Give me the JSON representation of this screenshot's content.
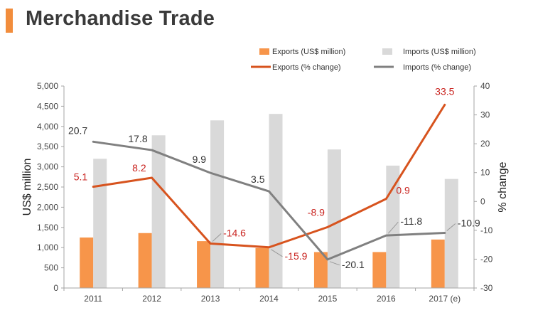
{
  "header": {
    "title": "Merchandise Trade",
    "accent_color": "#f28d3c"
  },
  "chart_data": {
    "type": "bar",
    "categories": [
      "2011",
      "2012",
      "2013",
      "2014",
      "2015",
      "2016",
      "2017 (e)"
    ],
    "series": [
      {
        "name": "Exports (US$ million)",
        "kind": "bar",
        "axis": "left",
        "color": "#f7954a",
        "values": [
          1250,
          1360,
          1160,
          990,
          890,
          890,
          1200
        ]
      },
      {
        "name": "Imports (US$ million)",
        "kind": "bar",
        "axis": "left",
        "color": "#d9d9d9",
        "values": [
          3200,
          3780,
          4150,
          4310,
          3430,
          3030,
          2700
        ]
      },
      {
        "name": "Exports (% change)",
        "kind": "line",
        "axis": "right",
        "color": "#d7531e",
        "label_color": "#c9231f",
        "values": [
          5.1,
          8.2,
          -14.6,
          -15.9,
          -8.9,
          0.9,
          33.5
        ],
        "labels": [
          "5.1",
          "8.2",
          "-14.6",
          "-15.9",
          "-8.9",
          "0.9",
          "33.5"
        ]
      },
      {
        "name": "Imports (% change)",
        "kind": "line",
        "axis": "right",
        "color": "#808080",
        "label_color": "#333333",
        "values": [
          20.7,
          17.8,
          9.9,
          3.5,
          -20.1,
          -11.8,
          -10.9
        ],
        "labels": [
          "20.7",
          "17.8",
          "9.9",
          "3.5",
          "-20.1",
          "-11.8",
          "-10.9"
        ]
      }
    ],
    "ylabel": "US$ million",
    "y2label": "% change",
    "ylim": [
      0,
      5000
    ],
    "y2lim": [
      -30,
      40
    ],
    "yticks": [
      "0",
      "500",
      "1,000",
      "1,500",
      "2,000",
      "2,500",
      "3,000",
      "3,500",
      "4,000",
      "4,500",
      "5,000"
    ],
    "y2ticks": [
      "-30",
      "-20",
      "-10",
      "0",
      "10",
      "20",
      "30",
      "40"
    ],
    "grid": false,
    "legend_position": "top"
  }
}
